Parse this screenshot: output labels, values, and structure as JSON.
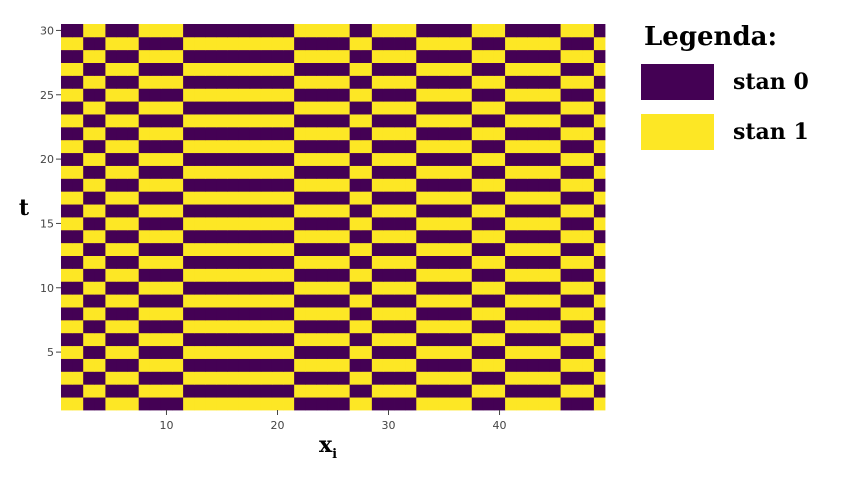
{
  "chart_data": {
    "type": "heatmap",
    "title": "",
    "xlabel": "x",
    "xlabel_subscript": "i",
    "ylabel": "t",
    "xlim": [
      0.5,
      49.5
    ],
    "ylim": [
      0.5,
      30.5
    ],
    "x_ticks": [
      10,
      20,
      30,
      40
    ],
    "y_ticks": [
      5,
      10,
      15,
      20,
      25,
      30
    ],
    "grid": false,
    "legend": {
      "title": "Legenda:",
      "placement": "right",
      "items": [
        {
          "label": "stan 0",
          "value": 0,
          "color": "#440154"
        },
        {
          "label": "stan 1",
          "value": 1,
          "color": "#fde725"
        }
      ]
    },
    "colorscale": {
      "0": "#440154",
      "1": "#fde725"
    },
    "initial_state": {
      "t": 1,
      "comment_free": true,
      "x_cells": [
        1,
        2,
        3,
        4,
        5,
        6,
        7,
        8,
        9,
        10,
        11,
        12,
        13,
        14,
        15,
        16,
        17,
        18,
        19,
        20,
        21,
        22,
        23,
        24,
        25,
        26,
        27,
        28,
        29,
        30,
        31,
        32,
        33,
        34,
        35,
        36,
        37,
        38,
        39,
        40,
        41,
        42,
        43,
        44,
        45,
        46,
        47,
        48,
        49
      ],
      "values": [
        1,
        1,
        0,
        0,
        1,
        1,
        1,
        0,
        0,
        0,
        0,
        1,
        1,
        1,
        1,
        1,
        1,
        1,
        1,
        1,
        1,
        0,
        0,
        0,
        0,
        0,
        1,
        1,
        0,
        0,
        0,
        0,
        1,
        1,
        1,
        1,
        1,
        0,
        0,
        0,
        1,
        1,
        1,
        1,
        1,
        0,
        0,
        0,
        1
      ]
    },
    "rule": "next[i] = 1 - prev[i]"
  }
}
